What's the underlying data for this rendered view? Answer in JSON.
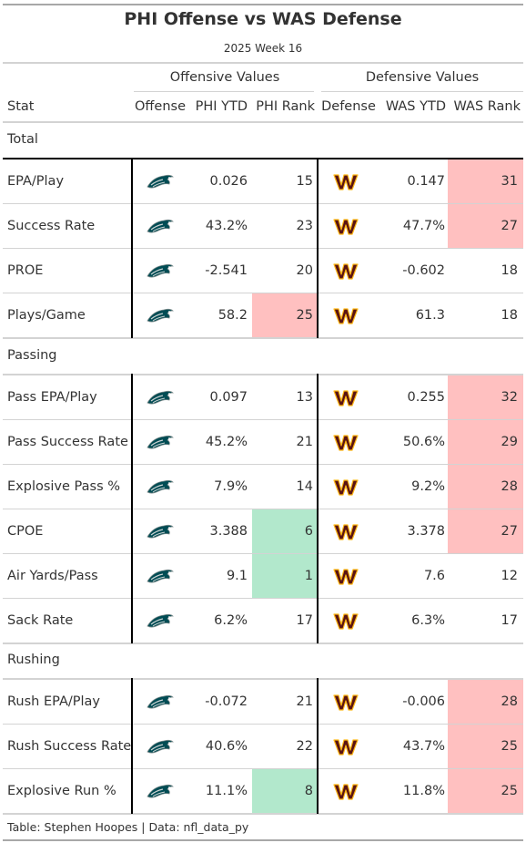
{
  "title": "PHI Offense vs WAS Defense",
  "subtitle": "2025 Week 16",
  "spanners": {
    "offense": "Offensive Values",
    "defense": "Defensive Values"
  },
  "columns": {
    "stat": "Stat",
    "offense": "Offense",
    "off_ytd": "PHI YTD",
    "off_rank": "PHI Rank",
    "defense": "Defense",
    "def_ytd": "WAS YTD",
    "def_rank": "WAS Rank"
  },
  "icons": {
    "offense": "eagles-logo-icon",
    "defense": "commanders-logo-icon"
  },
  "colors": {
    "bad": "#ffc0c0",
    "good": "#b2e8cc",
    "eagles": "#004c54",
    "commanders": "#5a1414",
    "commanders_gold": "#ffb612"
  },
  "groups": [
    {
      "label": "Total",
      "rows": [
        {
          "stat": "EPA/Play",
          "off_ytd": "0.026",
          "off_rank": "15",
          "off_hl": "",
          "def_ytd": "0.147",
          "def_rank": "31",
          "def_hl": "bad"
        },
        {
          "stat": "Success Rate",
          "off_ytd": "43.2%",
          "off_rank": "23",
          "off_hl": "",
          "def_ytd": "47.7%",
          "def_rank": "27",
          "def_hl": "bad"
        },
        {
          "stat": "PROE",
          "off_ytd": "-2.541",
          "off_rank": "20",
          "off_hl": "",
          "def_ytd": "-0.602",
          "def_rank": "18",
          "def_hl": ""
        },
        {
          "stat": "Plays/Game",
          "off_ytd": "58.2",
          "off_rank": "25",
          "off_hl": "bad",
          "def_ytd": "61.3",
          "def_rank": "18",
          "def_hl": ""
        }
      ]
    },
    {
      "label": "Passing",
      "rows": [
        {
          "stat": "Pass EPA/Play",
          "off_ytd": "0.097",
          "off_rank": "13",
          "off_hl": "",
          "def_ytd": "0.255",
          "def_rank": "32",
          "def_hl": "bad"
        },
        {
          "stat": "Pass Success Rate",
          "off_ytd": "45.2%",
          "off_rank": "21",
          "off_hl": "",
          "def_ytd": "50.6%",
          "def_rank": "29",
          "def_hl": "bad"
        },
        {
          "stat": "Explosive Pass %",
          "off_ytd": "7.9%",
          "off_rank": "14",
          "off_hl": "",
          "def_ytd": "9.2%",
          "def_rank": "28",
          "def_hl": "bad"
        },
        {
          "stat": "CPOE",
          "off_ytd": "3.388",
          "off_rank": "6",
          "off_hl": "good",
          "def_ytd": "3.378",
          "def_rank": "27",
          "def_hl": "bad"
        },
        {
          "stat": "Air Yards/Pass",
          "off_ytd": "9.1",
          "off_rank": "1",
          "off_hl": "good",
          "def_ytd": "7.6",
          "def_rank": "12",
          "def_hl": ""
        },
        {
          "stat": "Sack Rate",
          "off_ytd": "6.2%",
          "off_rank": "17",
          "off_hl": "",
          "def_ytd": "6.3%",
          "def_rank": "17",
          "def_hl": ""
        }
      ]
    },
    {
      "label": "Rushing",
      "rows": [
        {
          "stat": "Rush EPA/Play",
          "off_ytd": "-0.072",
          "off_rank": "21",
          "off_hl": "",
          "def_ytd": "-0.006",
          "def_rank": "28",
          "def_hl": "bad"
        },
        {
          "stat": "Rush Success Rate",
          "off_ytd": "40.6%",
          "off_rank": "22",
          "off_hl": "",
          "def_ytd": "43.7%",
          "def_rank": "25",
          "def_hl": "bad"
        },
        {
          "stat": "Explosive Run %",
          "off_ytd": "11.1%",
          "off_rank": "8",
          "off_hl": "good",
          "def_ytd": "11.8%",
          "def_rank": "25",
          "def_hl": "bad"
        }
      ]
    }
  ],
  "footer": "Table: Stephen Hoopes | Data: nfl_data_py"
}
